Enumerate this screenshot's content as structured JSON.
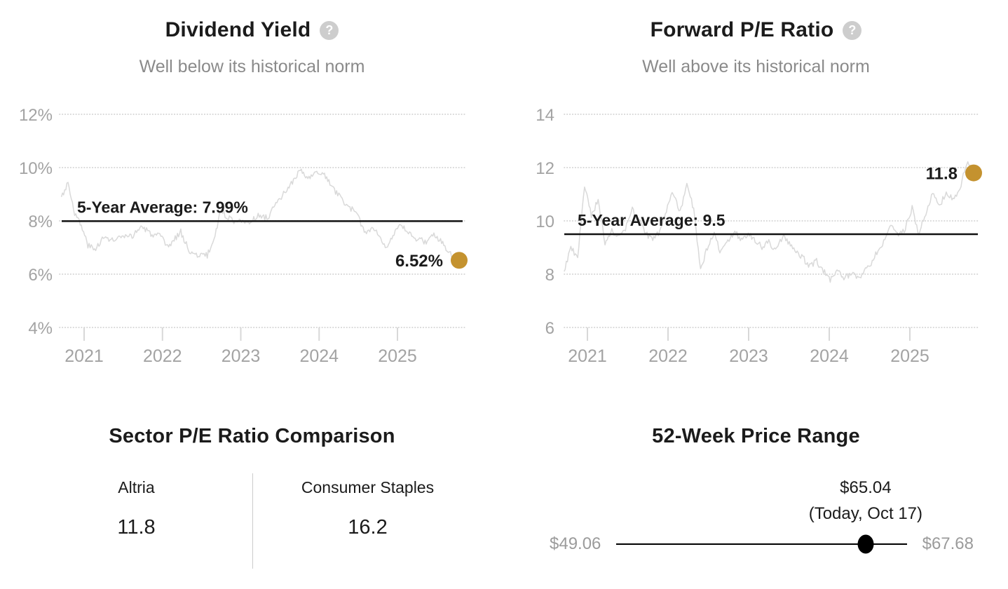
{
  "colors": {
    "accent_gold": "#c4922f",
    "average_line": "#111111",
    "data_line": "#d9d9d9",
    "grid_dots": "#d2d2d2",
    "tick_mark": "#d8d8d8",
    "axis_text": "#a3a3a3",
    "muted_text": "#8a8a8a",
    "heading_text": "#1b1b1b",
    "range_marker": "#000000",
    "help_icon_bg": "#cdcdcd"
  },
  "icons": {
    "help": "?"
  },
  "chart_data": [
    {
      "id": "dividend_yield",
      "type": "line",
      "title": "Dividend Yield",
      "subtitle": "Well below its historical norm",
      "unit": "%",
      "y_ticks": [
        12,
        10,
        8,
        6,
        4
      ],
      "y_tick_labels": [
        "12%",
        "10%",
        "8%",
        "6%",
        "4%"
      ],
      "ylim": [
        4,
        12
      ],
      "x_ticks": [
        2021,
        2022,
        2023,
        2024,
        2025
      ],
      "x_tick_labels": [
        "2021",
        "2022",
        "2023",
        "2024",
        "2025"
      ],
      "x_range": [
        2020.71,
        2025.79
      ],
      "grid": "dotted-horizontal",
      "legend": "none",
      "average": {
        "value": 7.99,
        "label": "5-Year Average: 7.99%"
      },
      "current": {
        "value": 6.52,
        "label": "6.52%"
      },
      "series": [
        {
          "name": "Dividend Yield",
          "cadence": "monthly",
          "values": [
            8.9,
            9.45,
            8.3,
            7.8,
            7.1,
            6.9,
            7.3,
            7.35,
            7.25,
            7.4,
            7.35,
            7.5,
            7.8,
            7.6,
            7.45,
            7.4,
            7.0,
            7.3,
            7.6,
            7.0,
            6.7,
            6.75,
            6.7,
            7.3,
            8.4,
            8.15,
            8.0,
            8.1,
            7.85,
            8.1,
            8.2,
            8.1,
            8.5,
            8.8,
            9.2,
            9.5,
            9.9,
            9.6,
            9.7,
            9.85,
            9.6,
            9.2,
            8.9,
            8.6,
            8.4,
            8.0,
            7.5,
            7.8,
            7.4,
            7.05,
            7.4,
            7.8,
            7.65,
            7.4,
            7.3,
            7.2,
            7.5,
            7.3,
            7.0,
            6.7,
            6.52
          ]
        }
      ]
    },
    {
      "id": "forward_pe",
      "type": "line",
      "title": "Forward P/E Ratio",
      "subtitle": "Well above its historical norm",
      "unit": "",
      "y_ticks": [
        14,
        12,
        10,
        8,
        6
      ],
      "y_tick_labels": [
        "14",
        "12",
        "10",
        "8",
        "6"
      ],
      "ylim": [
        6,
        14
      ],
      "x_ticks": [
        2021,
        2022,
        2023,
        2024,
        2025
      ],
      "x_tick_labels": [
        "2021",
        "2022",
        "2023",
        "2024",
        "2025"
      ],
      "x_range": [
        2020.71,
        2025.79
      ],
      "grid": "dotted-horizontal",
      "legend": "none",
      "average": {
        "value": 9.5,
        "label": "5-Year Average: 9.5"
      },
      "current": {
        "value": 11.8,
        "label": "11.8"
      },
      "series": [
        {
          "name": "Forward P/E Ratio",
          "cadence": "monthly",
          "values": [
            8.1,
            9.0,
            8.6,
            11.3,
            10.2,
            10.8,
            9.2,
            9.6,
            9.4,
            9.7,
            10.4,
            10.0,
            9.5,
            9.3,
            9.6,
            10.4,
            11.1,
            10.3,
            11.5,
            10.4,
            8.1,
            9.0,
            9.5,
            8.8,
            9.2,
            9.6,
            9.3,
            9.5,
            9.3,
            9.0,
            9.2,
            8.9,
            9.4,
            9.2,
            8.8,
            8.6,
            8.3,
            8.5,
            8.1,
            7.8,
            8.1,
            7.9,
            8.0,
            7.85,
            8.1,
            8.4,
            8.9,
            9.3,
            9.9,
            9.4,
            9.7,
            10.5,
            9.5,
            10.3,
            11.0,
            10.6,
            11.0,
            10.8,
            11.2,
            12.2,
            11.8
          ]
        }
      ]
    },
    {
      "id": "sector_pe_comparison",
      "type": "table",
      "title": "Sector P/E Ratio Comparison",
      "columns": [
        {
          "label": "Altria",
          "value": "11.8"
        },
        {
          "label": "Consumer Staples",
          "value": "16.2"
        }
      ]
    },
    {
      "id": "price_range_52w",
      "type": "range",
      "title": "52-Week Price Range",
      "low": {
        "label": "$49.06",
        "value": 49.06
      },
      "high": {
        "label": "$67.68",
        "value": 67.68
      },
      "current": {
        "label": "$65.04",
        "sublabel": "(Today, Oct 17)",
        "value": 65.04
      }
    }
  ]
}
